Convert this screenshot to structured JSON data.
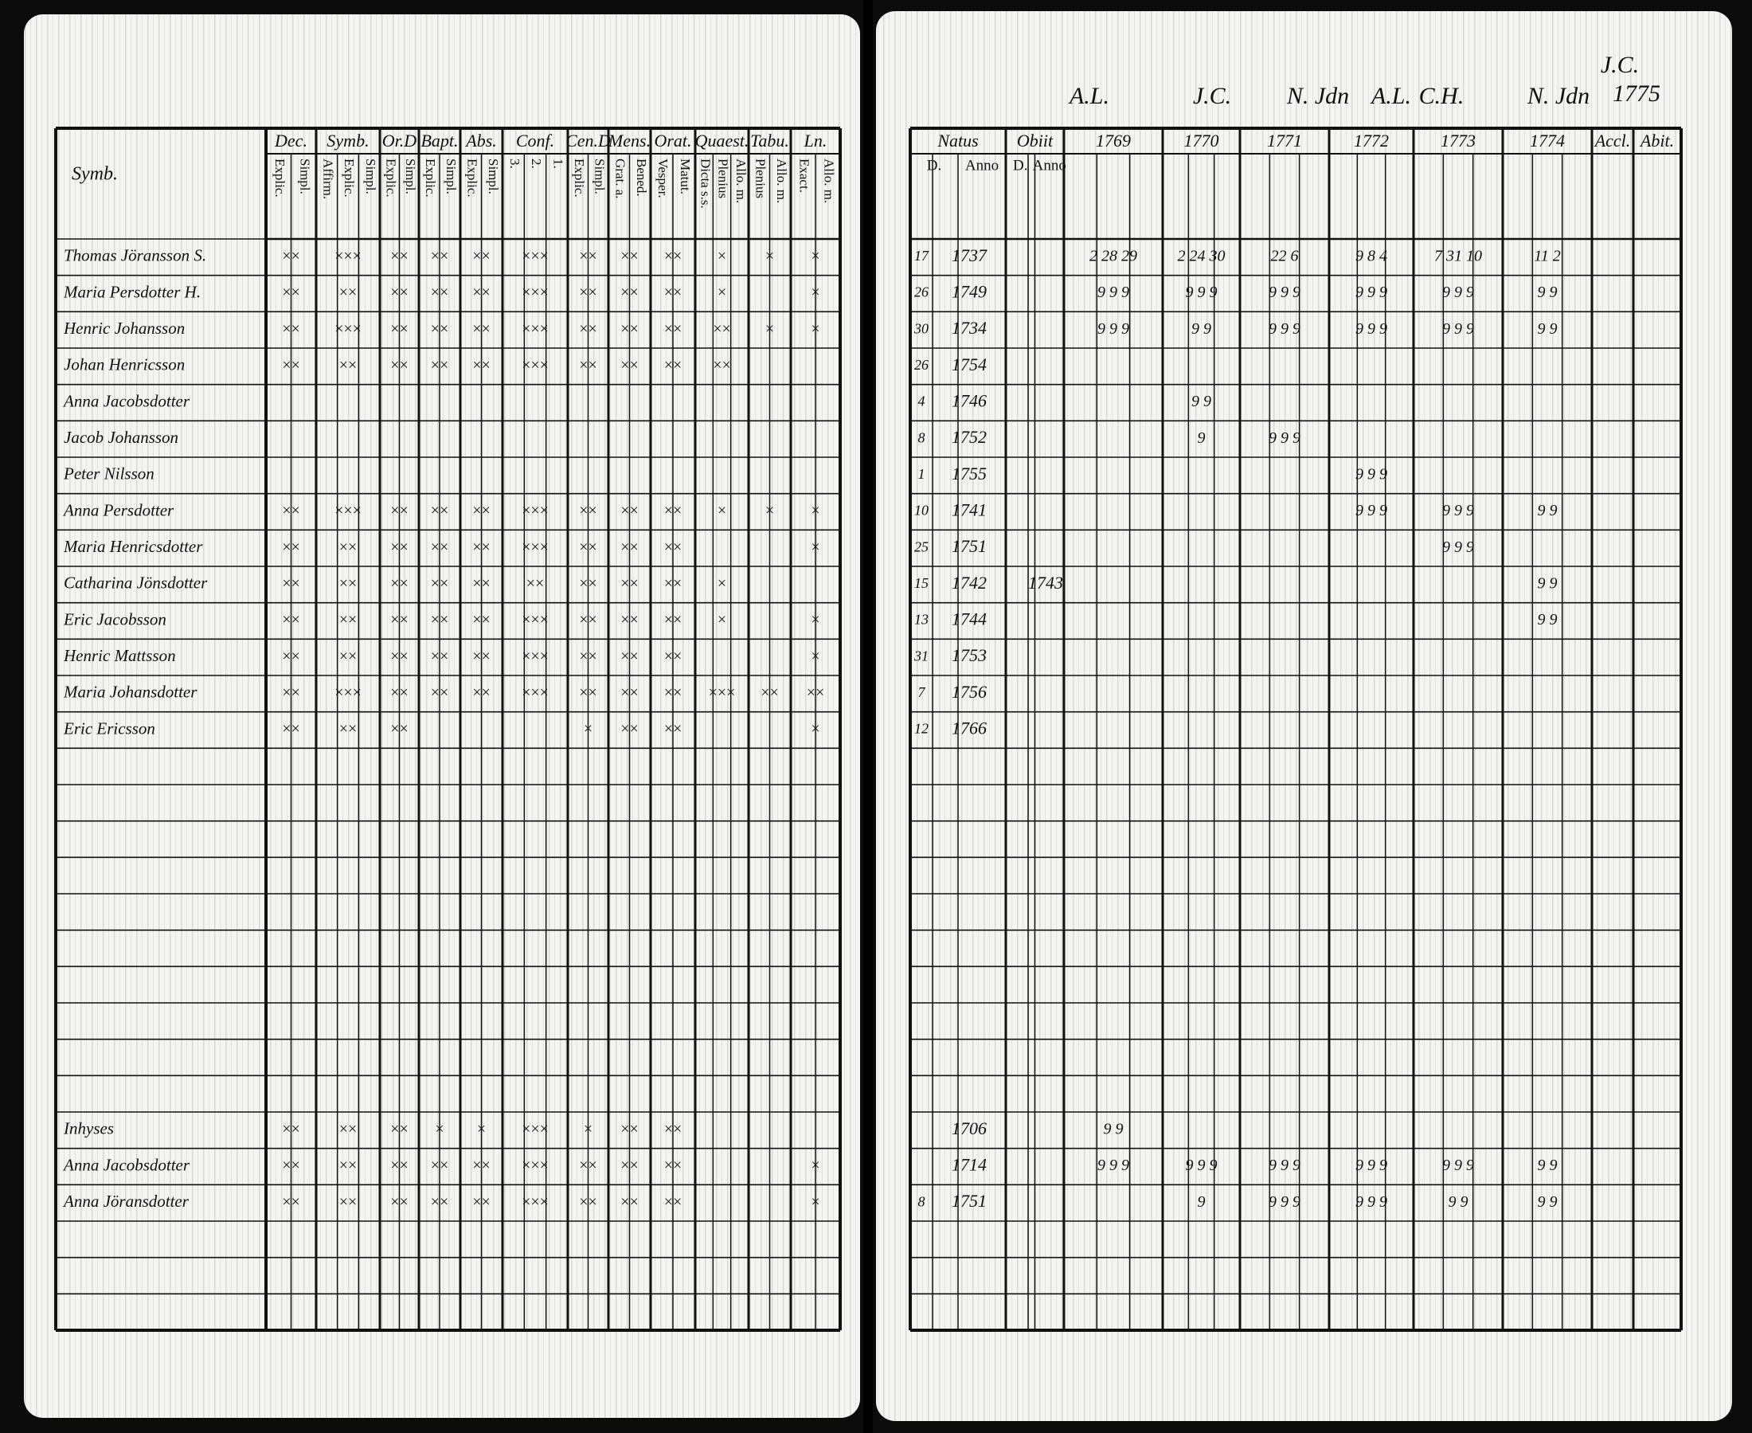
{
  "annotations": [
    "A.L.",
    "J.C.",
    "N. Jdn",
    "A.L.",
    "C.H.",
    "N. Jdn",
    "J.C.",
    "1775"
  ],
  "left": {
    "corner": "Symb.",
    "columns": [
      {
        "name": "Dec.",
        "sub": [
          "Explic.",
          "Simpl."
        ]
      },
      {
        "name": "Symb.",
        "sub": [
          "Affirm.",
          "Explic.",
          "Simpl."
        ]
      },
      {
        "name": "Or.D",
        "sub": [
          "Explic.",
          "Simpl."
        ]
      },
      {
        "name": "Bapt.",
        "sub": [
          "Explic.",
          "Simpl."
        ]
      },
      {
        "name": "Abs.",
        "sub": [
          "Explic.",
          "Simpl."
        ]
      },
      {
        "name": "Conf.",
        "sub": [
          "3.",
          "2.",
          "1."
        ]
      },
      {
        "name": "Cen.D",
        "sub": [
          "Explic.",
          "Simpl."
        ]
      },
      {
        "name": "Mens.",
        "sub": [
          "Grat. a.",
          "Bened."
        ]
      },
      {
        "name": "Orat.",
        "sub": [
          "Vesper.",
          "Matut."
        ]
      },
      {
        "name": "Quaest.",
        "sub": [
          "Dicta s.s.",
          "Plenius",
          "Allo. m."
        ]
      },
      {
        "name": "Tabu.",
        "sub": [
          "Plenius",
          "Allo. m."
        ]
      },
      {
        "name": "Ln.",
        "sub": [
          "Exact.",
          "Allo. m."
        ]
      }
    ],
    "rows": [
      {
        "name": "Thomas Jöransson S.",
        "marks": [
          "××",
          "×××",
          "××",
          "××",
          "××",
          "×××",
          "××",
          "××",
          "××",
          "×",
          "×",
          "×"
        ]
      },
      {
        "name": "Maria Persdotter H.",
        "marks": [
          "××",
          "××",
          "××",
          "××",
          "××",
          "×××",
          "××",
          "××",
          "××",
          "×",
          null,
          "×"
        ]
      },
      {
        "name": "Henric Johansson",
        "marks": [
          "××",
          "×××",
          "××",
          "××",
          "××",
          "×××",
          "××",
          "××",
          "××",
          "××",
          "×",
          "×"
        ]
      },
      {
        "name": "Johan Henricsson",
        "marks": [
          "××",
          "××",
          "××",
          "××",
          "××",
          "×××",
          "××",
          "××",
          "××",
          "××",
          null,
          null
        ]
      },
      {
        "name": "Anna Jacobsdotter"
      },
      {
        "name": "Jacob Johansson"
      },
      {
        "name": "Peter Nilsson"
      },
      {
        "name": "Anna Persdotter",
        "marks": [
          "××",
          "×××",
          "××",
          "××",
          "××",
          "×××",
          "××",
          "××",
          "××",
          "×",
          "×",
          "×"
        ]
      },
      {
        "name": "Maria Henricsdotter",
        "marks": [
          "××",
          "××",
          "××",
          "××",
          "××",
          "×××",
          "××",
          "××",
          "××",
          null,
          null,
          "×"
        ]
      },
      {
        "name": "Catharina Jönsdotter",
        "marks": [
          "××",
          "××",
          "××",
          "××",
          "××",
          "××",
          "××",
          "××",
          "××",
          "×",
          null,
          null
        ]
      },
      {
        "name": "Eric Jacobsson",
        "marks": [
          "××",
          "××",
          "××",
          "××",
          "××",
          "×××",
          "××",
          "××",
          "××",
          "×",
          null,
          "×"
        ]
      },
      {
        "name": "Henric Mattsson",
        "marks": [
          "××",
          "××",
          "××",
          "××",
          "××",
          "×××",
          "××",
          "××",
          "××",
          null,
          null,
          "×"
        ]
      },
      {
        "name": "Maria Johansdotter",
        "marks": [
          "××",
          "×××",
          "××",
          "××",
          "××",
          "×××",
          "××",
          "××",
          "××",
          "×××",
          "××",
          "××"
        ]
      },
      {
        "name": "Eric Ericsson",
        "marks": [
          "××",
          "××",
          "××",
          null,
          null,
          null,
          "×",
          "××",
          "××",
          null,
          null,
          "×"
        ]
      }
    ],
    "lower_rows": [
      {
        "name": "Inhyses",
        "marks": [
          "××",
          "××",
          "××",
          "×",
          "×",
          "×××",
          "×",
          "××",
          "××",
          null,
          null,
          null
        ]
      },
      {
        "name": "Anna Jacobsdotter",
        "marks": [
          "××",
          "××",
          "××",
          "××",
          "××",
          "×××",
          "××",
          "××",
          "××",
          null,
          null,
          "×"
        ]
      },
      {
        "name": "Anna Jöransdotter",
        "marks": [
          "××",
          "××",
          "××",
          "××",
          "××",
          "×××",
          "××",
          "××",
          "××",
          null,
          null,
          "×"
        ]
      }
    ]
  },
  "right": {
    "columns": [
      {
        "name": "Natus",
        "sub": [
          "D.",
          "Anno"
        ]
      },
      {
        "name": "Obiit",
        "sub": [
          "D.",
          "Anno"
        ]
      },
      {
        "name": "1769"
      },
      {
        "name": "1770"
      },
      {
        "name": "1771"
      },
      {
        "name": "1772"
      },
      {
        "name": "1773"
      },
      {
        "name": "1774"
      },
      {
        "name": "Accl."
      },
      {
        "name": "Abit."
      }
    ],
    "rows": [
      {
        "day": 17,
        "anno": 1737,
        "marks": [
          "2 28 29",
          "2 24 30",
          "22 6",
          "9 8 4",
          "7 31 10",
          "11 2"
        ]
      },
      {
        "day": 26,
        "anno": 1749,
        "marks": [
          "9 9 9",
          "9 9 9",
          "9 9 9",
          "9 9 9",
          "9 9 9",
          "9 9"
        ]
      },
      {
        "day": 30,
        "anno": 1734,
        "marks": [
          "9 9 9",
          "9 9",
          "9 9 9",
          "9 9 9",
          "9 9 9",
          "9 9"
        ]
      },
      {
        "day": 26,
        "anno": 1754
      },
      {
        "day": 4,
        "anno": 1746,
        "marks": [
          null,
          "9 9",
          null,
          null,
          null,
          null
        ]
      },
      {
        "day": 8,
        "anno": 1752,
        "marks": [
          null,
          "9",
          "9 9 9",
          null,
          null,
          null
        ]
      },
      {
        "day": 1,
        "anno": 1755,
        "marks": [
          null,
          null,
          null,
          "9 9 9",
          null,
          null
        ]
      },
      {
        "day": 10,
        "anno": 1741,
        "marks": [
          null,
          null,
          null,
          "9 9 9",
          "9 9 9",
          "9 9"
        ]
      },
      {
        "day": 25,
        "anno": 1751,
        "marks": [
          null,
          null,
          null,
          null,
          "9 9 9",
          null
        ]
      },
      {
        "day": 15,
        "anno": 1742,
        "obiit": 1743,
        "marks": [
          null,
          null,
          null,
          null,
          null,
          "9 9"
        ]
      },
      {
        "day": 13,
        "anno": 1744,
        "marks": [
          null,
          null,
          null,
          null,
          null,
          "9 9"
        ]
      },
      {
        "day": 31,
        "anno": 1753
      },
      {
        "day": 7,
        "anno": 1756
      },
      {
        "day": 12,
        "anno": 1766
      }
    ],
    "lower_rows": [
      {
        "anno": 1706,
        "marks": [
          "9 9",
          null,
          null,
          null,
          null,
          null
        ]
      },
      {
        "anno": 1714,
        "marks": [
          "9 9 9",
          "9 9 9",
          "9 9 9",
          "9 9 9",
          "9 9 9",
          "9 9"
        ]
      },
      {
        "day": 8,
        "anno": 1751,
        "marks": [
          null,
          "9",
          "9 9 9",
          "9 9 9",
          "9 9",
          "9 9"
        ]
      }
    ]
  }
}
